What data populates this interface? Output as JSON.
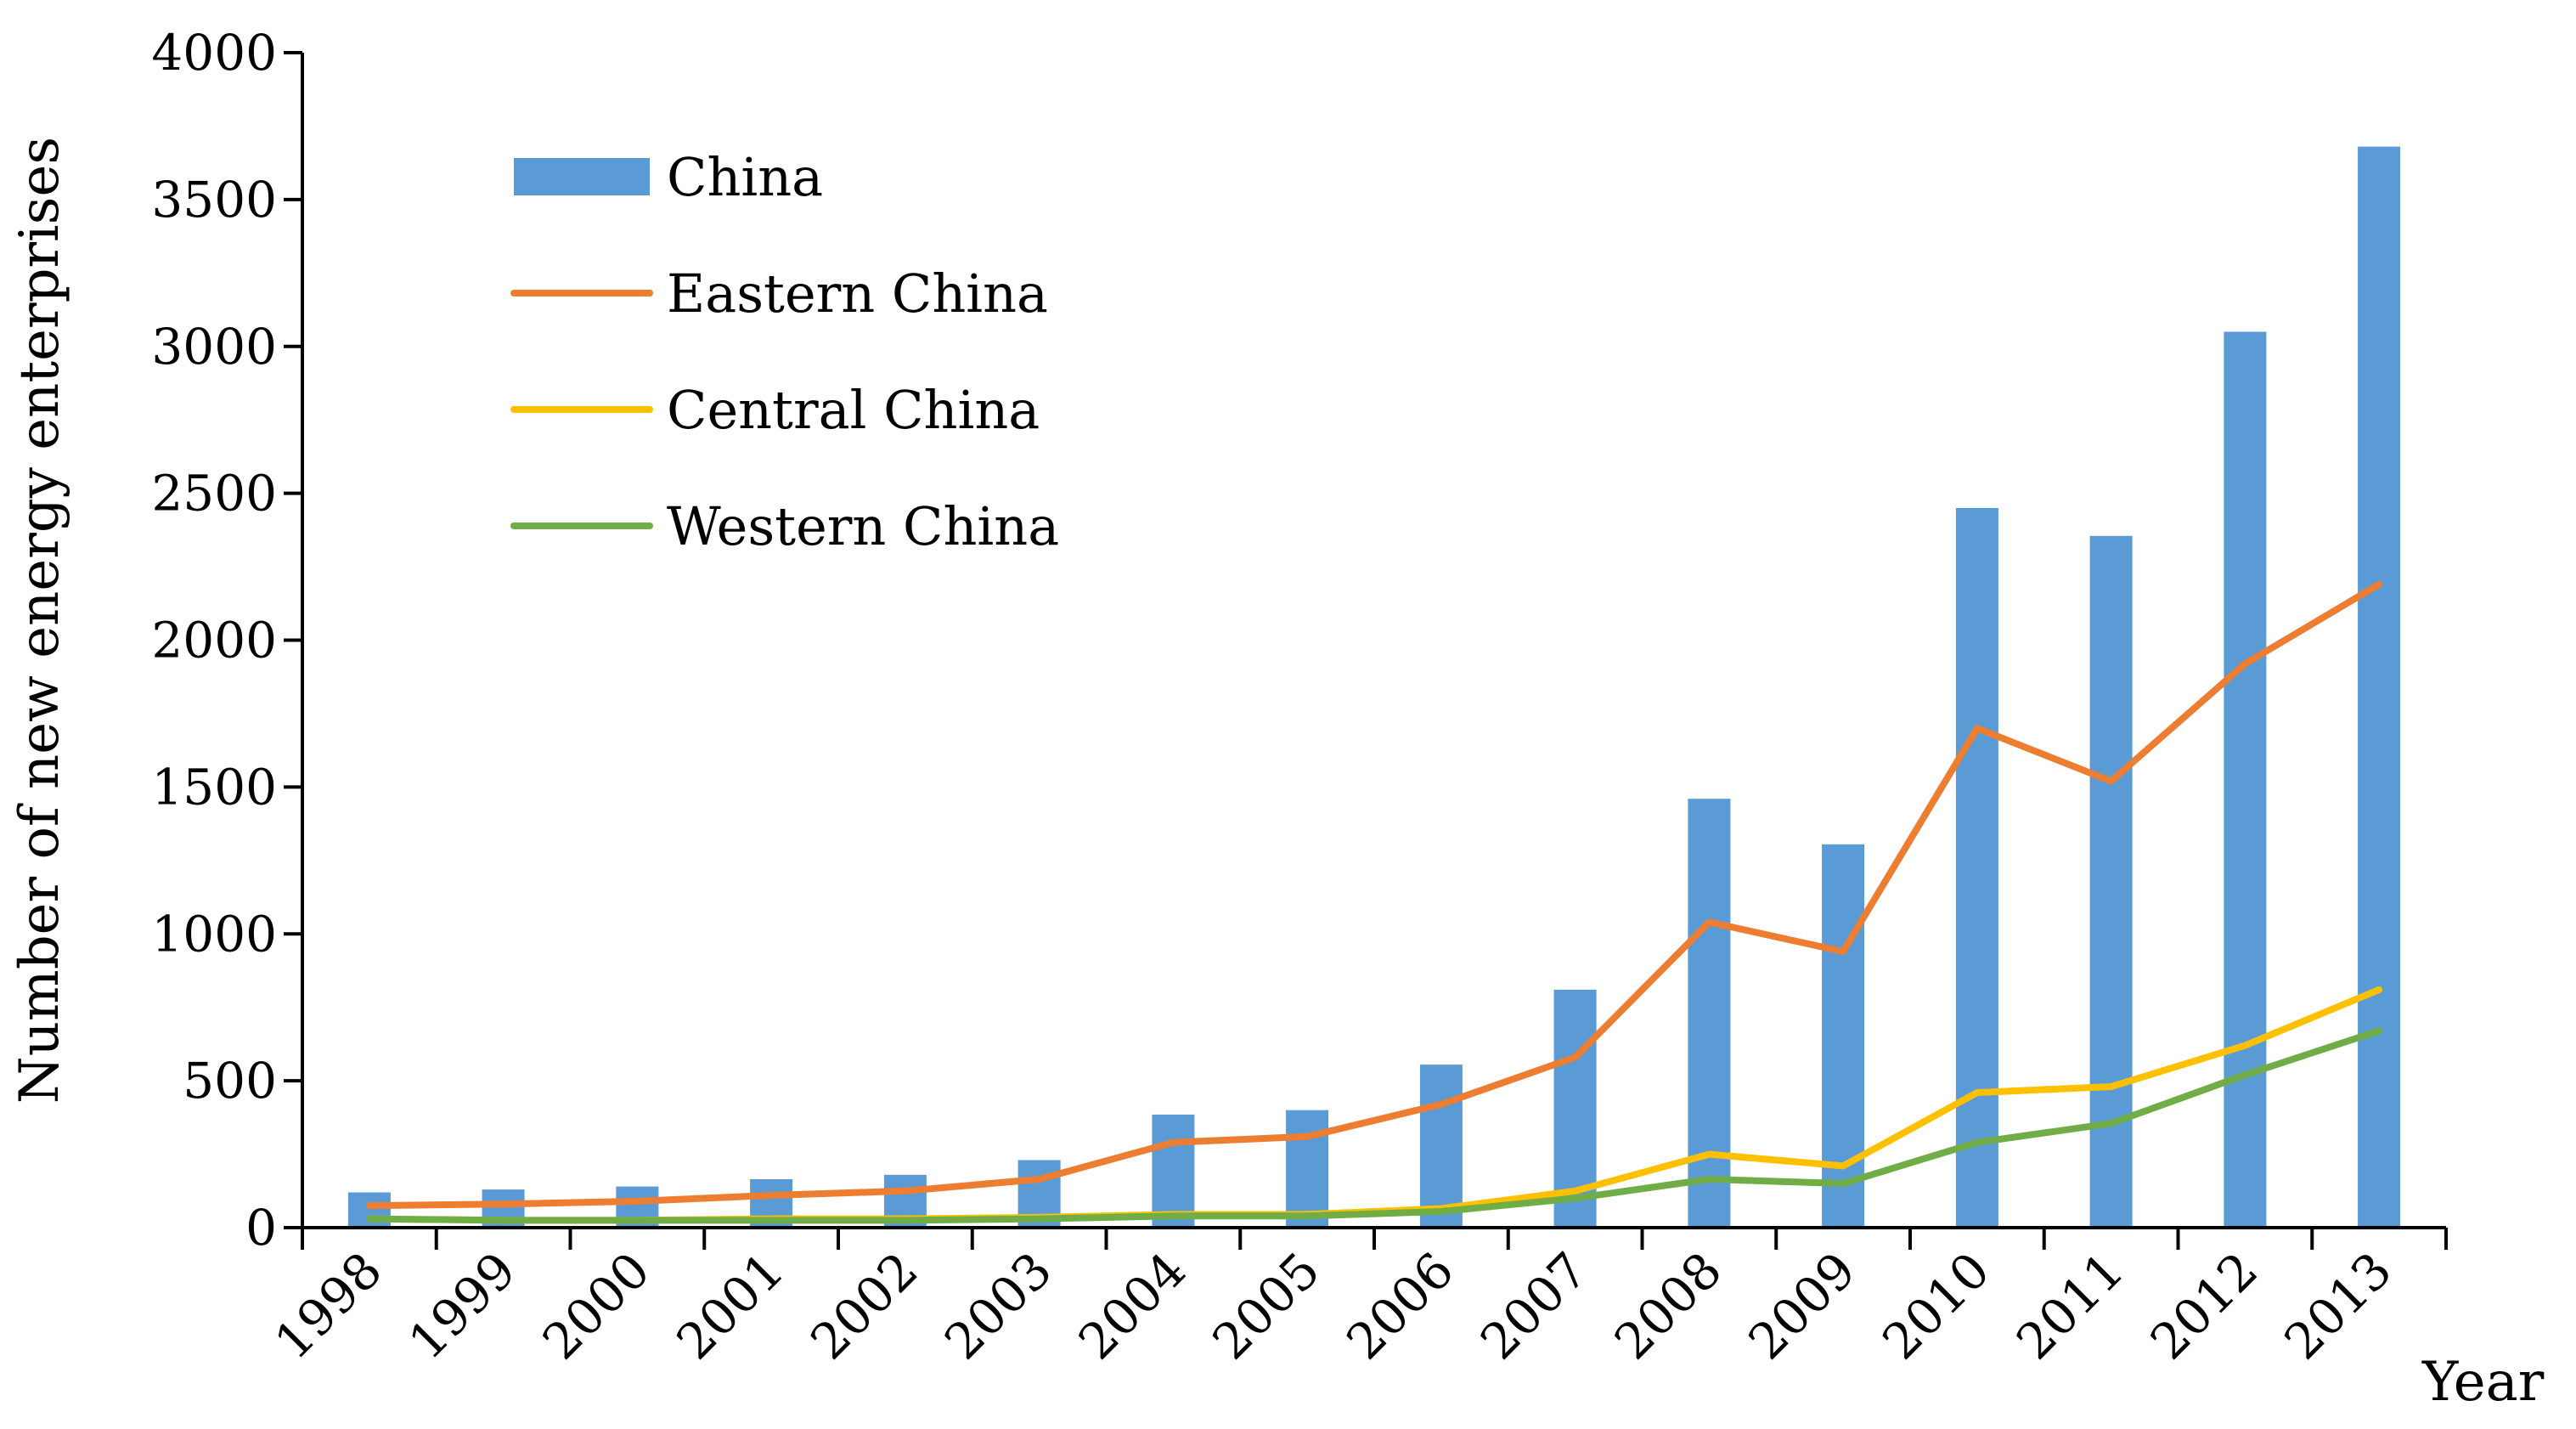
{
  "chart_data": {
    "type": "bar+line",
    "title": "",
    "xlabel": "Year",
    "ylabel": "Number of new energy enterprises",
    "ylim": [
      0,
      4000
    ],
    "yticks": [
      0,
      500,
      1000,
      1500,
      2000,
      2500,
      3000,
      3500,
      4000
    ],
    "categories": [
      "1998",
      "1999",
      "2000",
      "2001",
      "2002",
      "2003",
      "2004",
      "2005",
      "2006",
      "2007",
      "2008",
      "2009",
      "2010",
      "2011",
      "2012",
      "2013"
    ],
    "legend_position": "top-left",
    "series": [
      {
        "name": "China",
        "kind": "bar",
        "color": "#5B9BD5",
        "values": [
          120,
          130,
          140,
          165,
          180,
          230,
          385,
          400,
          555,
          810,
          1460,
          1305,
          2450,
          2355,
          3050,
          3680
        ]
      },
      {
        "name": "Eastern China",
        "kind": "line",
        "color": "#ED7D31",
        "values": [
          75,
          80,
          90,
          110,
          125,
          165,
          290,
          310,
          420,
          580,
          1040,
          940,
          1700,
          1520,
          1920,
          2190
        ]
      },
      {
        "name": "Central China",
        "kind": "line",
        "color": "#FFC000",
        "values": [
          30,
          25,
          25,
          30,
          30,
          35,
          45,
          45,
          65,
          125,
          250,
          210,
          460,
          480,
          620,
          810
        ]
      },
      {
        "name": "Western China",
        "kind": "line",
        "color": "#70AD47",
        "values": [
          30,
          25,
          25,
          25,
          25,
          30,
          40,
          40,
          55,
          100,
          165,
          150,
          290,
          355,
          520,
          670
        ]
      }
    ]
  }
}
